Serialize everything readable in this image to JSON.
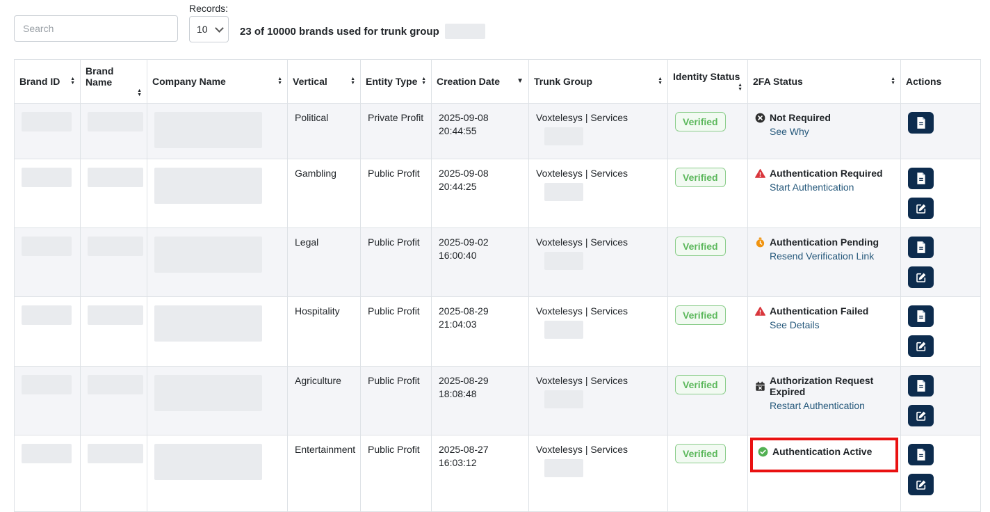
{
  "toolbar": {
    "search_placeholder": "Search",
    "records_label": "Records:",
    "records_value": "10",
    "summary_text": "23 of 10000 brands used for trunk group"
  },
  "colors": {
    "action_button_navy": "#0d2c4e",
    "link_blue": "#25587b",
    "verified_green": "#5cb85c",
    "danger_red": "#d9363c",
    "warning_orange": "#f0930f",
    "success_green": "#52b153",
    "dark_icon": "#2f2f2f",
    "highlight_red": "#e91111",
    "row_stripe": "#f4f5f8"
  },
  "table": {
    "columns": [
      {
        "key": "brand_id",
        "label": "Brand ID",
        "sort": "both"
      },
      {
        "key": "brand_name",
        "label": "Brand Name",
        "sort": "both"
      },
      {
        "key": "company_name",
        "label": "Company Name",
        "sort": "both"
      },
      {
        "key": "vertical",
        "label": "Vertical",
        "sort": "both"
      },
      {
        "key": "entity_type",
        "label": "Entity Type",
        "sort": "both"
      },
      {
        "key": "creation_date",
        "label": "Creation Date",
        "sort": "desc"
      },
      {
        "key": "trunk_group",
        "label": "Trunk Group",
        "sort": "both"
      },
      {
        "key": "identity_status",
        "label": "Identity Status",
        "sort": "both"
      },
      {
        "key": "twofa_status",
        "label": "2FA Status",
        "sort": "both"
      },
      {
        "key": "actions",
        "label": "Actions",
        "sort": "none"
      }
    ],
    "rows": [
      {
        "vertical": "Political",
        "entity_type": "Private Profit",
        "creation_date": "2025-09-08",
        "creation_time": "20:44:55",
        "trunk_group": "Voxtelesys | Services",
        "identity_status": "Verified",
        "twofa": {
          "icon": "circle-x-icon",
          "status": "Not Required",
          "action": "See Why"
        },
        "actions": [
          "view-document"
        ],
        "highlighted": false
      },
      {
        "vertical": "Gambling",
        "entity_type": "Public Profit",
        "creation_date": "2025-09-08",
        "creation_time": "20:44:25",
        "trunk_group": "Voxtelesys | Services",
        "identity_status": "Verified",
        "twofa": {
          "icon": "warning-triangle-icon",
          "status": "Authentication Required",
          "action": "Start Authentication"
        },
        "actions": [
          "view-document",
          "edit"
        ],
        "highlighted": false
      },
      {
        "vertical": "Legal",
        "entity_type": "Public Profit",
        "creation_date": "2025-09-02",
        "creation_time": "16:00:40",
        "trunk_group": "Voxtelesys | Services",
        "identity_status": "Verified",
        "twofa": {
          "icon": "stopwatch-icon",
          "status": "Authentication Pending",
          "action": "Resend Verification Link"
        },
        "actions": [
          "view-document",
          "edit"
        ],
        "highlighted": false
      },
      {
        "vertical": "Hospitality",
        "entity_type": "Public Profit",
        "creation_date": "2025-08-29",
        "creation_time": "21:04:03",
        "trunk_group": "Voxtelesys | Services",
        "identity_status": "Verified",
        "twofa": {
          "icon": "warning-triangle-icon",
          "status": "Authentication Failed",
          "action": "See Details"
        },
        "actions": [
          "view-document",
          "edit"
        ],
        "highlighted": false
      },
      {
        "vertical": "Agriculture",
        "entity_type": "Public Profit",
        "creation_date": "2025-08-29",
        "creation_time": "18:08:48",
        "trunk_group": "Voxtelesys | Services",
        "identity_status": "Verified",
        "twofa": {
          "icon": "calendar-x-icon",
          "status": "Authorization Request Expired",
          "action": "Restart Authentication"
        },
        "actions": [
          "view-document",
          "edit"
        ],
        "highlighted": false
      },
      {
        "vertical": "Entertainment",
        "entity_type": "Public Profit",
        "creation_date": "2025-08-27",
        "creation_time": "16:03:12",
        "trunk_group": "Voxtelesys | Services",
        "identity_status": "Verified",
        "twofa": {
          "icon": "check-circle-icon",
          "status": "Authentication Active",
          "action": null
        },
        "actions": [
          "view-document",
          "edit"
        ],
        "highlighted": true
      }
    ]
  }
}
